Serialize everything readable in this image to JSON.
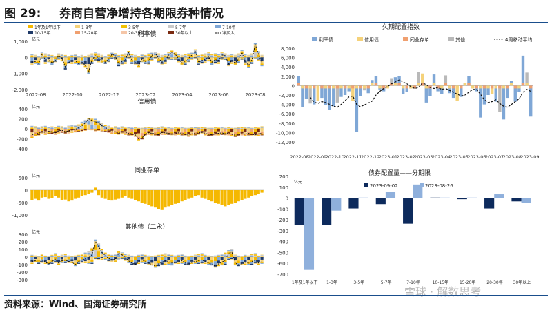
{
  "header": {
    "figure_no": "图 29:",
    "title": "券商自营净增持各期限券种情况"
  },
  "footer": {
    "source": "资料来源：Wind、国海证券研究所"
  },
  "watermark": {
    "text": "雪球 · 解数思考"
  },
  "chart_data": [
    {
      "type": "bar",
      "id": "rate-bond",
      "title": "利率债",
      "unit": "亿元",
      "stacked": true,
      "legend_position": "top",
      "yticks": [
        -2000,
        -1000,
        0,
        1000
      ],
      "ylim": [
        -2000,
        1000
      ],
      "xticks": [
        "2022-08",
        "2022-10",
        "2022-12",
        "2023-02",
        "2023-04",
        "2023-06",
        "2023-08"
      ],
      "legend": [
        "1年及1年以下",
        "1-3年",
        "3-5年",
        "5-7年",
        "7-10年",
        "10-15年",
        "15-20年",
        "20-30年",
        "30年以上",
        "净买入"
      ],
      "colors": [
        "#f5b800",
        "#f5d27a",
        "#f2c200",
        "#c9c9c9",
        "#7fa7d6",
        "#1f3a68",
        "#f0a070",
        "#f5c6a8",
        "#7a2a10",
        "#111111"
      ],
      "series_net": [
        -300,
        -250,
        -400,
        200,
        -150,
        -100,
        -350,
        -200,
        100,
        -50,
        -600,
        -300,
        -250,
        -200,
        -400,
        -300,
        -500,
        -900,
        -150,
        100,
        -50,
        -200,
        -300,
        -100,
        200,
        100,
        -400,
        -250,
        -150,
        300,
        -200,
        -300,
        -500,
        -100,
        -250,
        -200,
        100,
        250,
        -50,
        -300,
        -200,
        150,
        300,
        200,
        -100,
        -350,
        -250,
        -50,
        150,
        400,
        -300,
        -200,
        -100,
        50,
        -300,
        -150,
        -200,
        150,
        100,
        -400,
        -200,
        -350,
        -100,
        300,
        -250,
        -500,
        -150,
        800,
        200,
        -400
      ],
      "series_pos": [
        200,
        150,
        100,
        300,
        250,
        200,
        150,
        100,
        250,
        200,
        150,
        100,
        150,
        200,
        100,
        150,
        100,
        150,
        250,
        300,
        250,
        150,
        100,
        200,
        300,
        250,
        150,
        200,
        250,
        400,
        200,
        150,
        100,
        200,
        150,
        250,
        300,
        350,
        250,
        150,
        200,
        300,
        450,
        350,
        200,
        150,
        200,
        250,
        300,
        500,
        150,
        200,
        250,
        300,
        200,
        250,
        200,
        300,
        250,
        150,
        200,
        150,
        250,
        450,
        200,
        150,
        250,
        900,
        400,
        150
      ]
    },
    {
      "type": "bar",
      "id": "credit-bond",
      "title": "信用债",
      "unit": "亿元",
      "stacked": true,
      "yticks": [
        -400,
        -200,
        0,
        200,
        400
      ],
      "ylim": [
        -400,
        400
      ],
      "series_net": [
        -120,
        -100,
        -90,
        -60,
        -70,
        -50,
        -60,
        -80,
        -40,
        -30,
        -60,
        -40,
        -20,
        -10,
        20,
        60,
        120,
        200,
        170,
        140,
        120,
        60,
        30,
        -20,
        -60,
        -60,
        -90,
        -60,
        -70,
        -90,
        -100,
        -120,
        -200,
        -180,
        -110,
        -80,
        -90,
        -100,
        -120,
        -70,
        -80,
        -90,
        -110,
        -100,
        -80,
        -90,
        -110,
        -130,
        -100,
        -90,
        -80,
        -70,
        -90,
        -110,
        -120,
        -100,
        -90,
        -80,
        -100,
        -90,
        -110,
        -130,
        -120,
        -100,
        -110,
        -90,
        -110,
        -120,
        -100,
        -90
      ],
      "series_pos": [
        60,
        50,
        40,
        50,
        60,
        40,
        50,
        30,
        60,
        50,
        40,
        60,
        70,
        80,
        90,
        140,
        180,
        220,
        210,
        200,
        170,
        120,
        80,
        60,
        40,
        50,
        40,
        50,
        40,
        30,
        40,
        30,
        20,
        20,
        30,
        40,
        30,
        20,
        30,
        50,
        40,
        30,
        20,
        30,
        40,
        30,
        20,
        20,
        30,
        40,
        30,
        40,
        30,
        20,
        20,
        30,
        40,
        30,
        20,
        30,
        20,
        20,
        30,
        40,
        30,
        30,
        20,
        30,
        40,
        50
      ],
      "series_neg": [
        -180,
        -150,
        -140,
        -110,
        -120,
        -100,
        -110,
        -120,
        -90,
        -80,
        -100,
        -90,
        -80,
        -70,
        -60,
        -60,
        -40,
        -10,
        -30,
        -50,
        -40,
        -50,
        -60,
        -80,
        -100,
        -110,
        -120,
        -110,
        -120,
        -130,
        -140,
        -160,
        -230,
        -210,
        -140,
        -120,
        -130,
        -130,
        -150,
        -120,
        -120,
        -120,
        -130,
        -130,
        -120,
        -130,
        -140,
        -160,
        -130,
        -130,
        -120,
        -110,
        -130,
        -140,
        -150,
        -130,
        -130,
        -120,
        -130,
        -130,
        -140,
        -160,
        -150,
        -130,
        -140,
        -130,
        -140,
        -150,
        -140,
        -130
      ]
    },
    {
      "type": "bar",
      "id": "ncd",
      "title": "同业存单",
      "unit": "亿元",
      "yticks": [
        -1000,
        -500,
        0,
        500
      ],
      "ylim": [
        -1000,
        500
      ],
      "series_net": [
        -400,
        -350,
        -420,
        -300,
        -280,
        -350,
        -320,
        -250,
        -300,
        -400,
        -380,
        -450,
        -420,
        -350,
        -300,
        -250,
        -200,
        -150,
        -100,
        100,
        -200,
        -300,
        -350,
        -400,
        -420,
        -380,
        -350,
        -300,
        -250,
        -300,
        -350,
        -400,
        -450,
        -500,
        -550,
        -600,
        -650,
        -700,
        -750,
        -800,
        -700,
        -650,
        -600,
        -550,
        -500,
        -450,
        -400,
        -350,
        -300,
        -250,
        -200,
        -300,
        -350,
        -400,
        -450,
        -500,
        -550,
        -600,
        -650,
        -600,
        -550,
        -500,
        -450,
        -400,
        -350,
        -300,
        -250,
        -200,
        -150,
        -100
      ]
    },
    {
      "type": "bar",
      "id": "other",
      "title": "其他债（二永）",
      "unit": "亿元",
      "yticks": [
        -300,
        -200,
        -100,
        0,
        100,
        200,
        300
      ],
      "ylim": [
        -300,
        300
      ],
      "xticks": [
        "2022-08",
        "2022-10",
        "2022-12",
        "2023-02",
        "2023-04",
        "2023-06",
        "2023-08"
      ],
      "series_net": [
        -60,
        -50,
        -80,
        -40,
        -70,
        -90,
        -60,
        -30,
        -80,
        -50,
        -40,
        -60,
        -70,
        -100,
        -60,
        -40,
        -20,
        -10,
        30,
        200,
        140,
        60,
        20,
        -20,
        -40,
        -30,
        50,
        30,
        -10,
        -50,
        -80,
        -100,
        -60,
        -40,
        -60,
        -80,
        -100,
        -120,
        -90,
        -70,
        -50,
        -60,
        -80,
        -70,
        -60,
        -50,
        -80,
        -100,
        -70,
        -60,
        -50,
        -40,
        -60,
        -80,
        -100,
        -120,
        -90,
        -70,
        -40,
        50,
        60,
        -80,
        -100,
        -90,
        -70,
        -80,
        -60,
        -40,
        -80,
        -60
      ],
      "series_pos": [
        30,
        20,
        10,
        40,
        20,
        10,
        30,
        50,
        20,
        30,
        40,
        20,
        10,
        20,
        30,
        40,
        60,
        80,
        120,
        230,
        180,
        100,
        60,
        40,
        30,
        40,
        80,
        60,
        40,
        30,
        20,
        10,
        30,
        40,
        30,
        20,
        10,
        20,
        30,
        40,
        50,
        40,
        30,
        20,
        30,
        40,
        20,
        10,
        20,
        30,
        40,
        50,
        30,
        20,
        10,
        20,
        30,
        40,
        60,
        90,
        100,
        30,
        20,
        10,
        30,
        20,
        40,
        50,
        20,
        30
      ]
    },
    {
      "type": "bar",
      "id": "duration-index",
      "title": "久期配置指数",
      "legend": [
        "利率债",
        "信用债",
        "同业存单",
        "其他",
        "4周移动平均"
      ],
      "colors": [
        "#7fa7d6",
        "#f5d27a",
        "#f0a070",
        "#b9b9b9",
        "#111111"
      ],
      "yticks": [
        -12000,
        -10000,
        -8000,
        -6000,
        -4000,
        -2000,
        0,
        2000,
        4000,
        6000,
        8000
      ],
      "ylim": [
        -12000,
        8000
      ],
      "xticks": [
        "2022-08",
        "2022-09",
        "2022-10",
        "2022-11",
        "2022-12",
        "2023-01",
        "2023-02",
        "2023-03",
        "2023-04",
        "2023-05",
        "2023-06",
        "2023-07",
        "2023-08",
        "2023-09"
      ],
      "series_total": [
        2000,
        -4600,
        -2800,
        -3800,
        -4000,
        -3200,
        -2600,
        -4200,
        -5200,
        -4400,
        -3600,
        -2400,
        -2000,
        -1200,
        -3200,
        -9800,
        -2200,
        -1000,
        -1600,
        1200,
        2000,
        -800,
        -1200,
        -400,
        1600,
        1800,
        2000,
        -1800,
        -1400,
        -600,
        -400,
        3000,
        2600,
        -3600,
        -2200,
        2400,
        -1200,
        -1800,
        2200,
        -1600,
        -2600,
        -3200,
        -2400,
        600,
        2000,
        -600,
        -1200,
        -6800,
        -4000,
        -2000,
        -1800,
        -3400,
        -5600,
        -7200,
        -2600,
        1000,
        -3400,
        -1400,
        6400,
        2800,
        -6600
      ],
      "series_ma": [
        null,
        null,
        null,
        -2500,
        -3500,
        -3800,
        -3400,
        -3600,
        -4000,
        -4400,
        -4600,
        -4000,
        -3200,
        -2400,
        -2200,
        -4000,
        -4500,
        -4100,
        -3700,
        -3300,
        -2000,
        -1200,
        -600,
        -200,
        400,
        800,
        1200,
        800,
        400,
        -200,
        -600,
        -400,
        600,
        200,
        -400,
        -600,
        -400,
        -800,
        -600,
        -1000,
        -1400,
        -1800,
        -2200,
        -2000,
        -1400,
        -800,
        -800,
        -1800,
        -3000,
        -3600,
        -3400,
        -3000,
        -3800,
        -4400,
        -4600,
        -4000,
        -3400,
        -2800,
        -1400,
        -800,
        -1200
      ]
    },
    {
      "type": "bar",
      "id": "maturity-allocation",
      "title": "债券配置量——分期限",
      "unit": "亿元",
      "legend": [
        "2023-09-02",
        "2023-08-26"
      ],
      "colors": [
        "#0d2a5c",
        "#8fb0dc"
      ],
      "yticks": [
        -700,
        -600,
        -500,
        -400,
        -300,
        -200,
        -100,
        0,
        100,
        200
      ],
      "ylim": [
        -700,
        200
      ],
      "categories": [
        "1年及1年以下",
        "1-3年",
        "3-5年",
        "5-7年",
        "7-10年",
        "10-15年",
        "15-20年",
        "20-30年",
        "30年以上"
      ],
      "series": [
        {
          "name": "2023-09-02",
          "values": [
            -250,
            -245,
            -95,
            -55,
            -235,
            5,
            -10,
            -95,
            -30
          ]
        },
        {
          "name": "2023-08-26",
          "values": [
            -660,
            -115,
            5,
            55,
            125,
            5,
            5,
            35,
            -45
          ]
        }
      ]
    }
  ]
}
